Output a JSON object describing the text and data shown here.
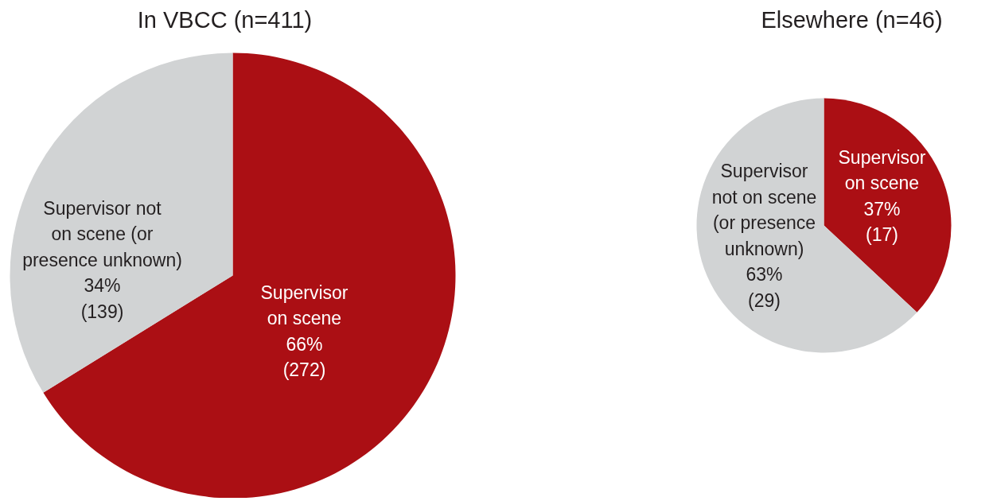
{
  "chart_data": [
    {
      "type": "pie",
      "title": "In VBCC (n=411)",
      "categories": [
        "Supervisor\non scene",
        "Supervisor not\non scene (or\npresence unknown)"
      ],
      "values": [
        272,
        139
      ],
      "colors": [
        "#ab0f14",
        "#d1d3d4"
      ],
      "value_labels": [
        "66%\n(272)",
        "34%\n(139)"
      ]
    },
    {
      "type": "pie",
      "title": "Elsewhere (n=46)",
      "categories": [
        "Supervisor\non scene",
        "Supervisor\nnot on scene\n(or presence\nunknown)"
      ],
      "values": [
        17,
        29
      ],
      "colors": [
        "#ab0f14",
        "#d1d3d4"
      ],
      "value_labels": [
        "37%\n(17)",
        "63%\n(29)"
      ]
    }
  ]
}
